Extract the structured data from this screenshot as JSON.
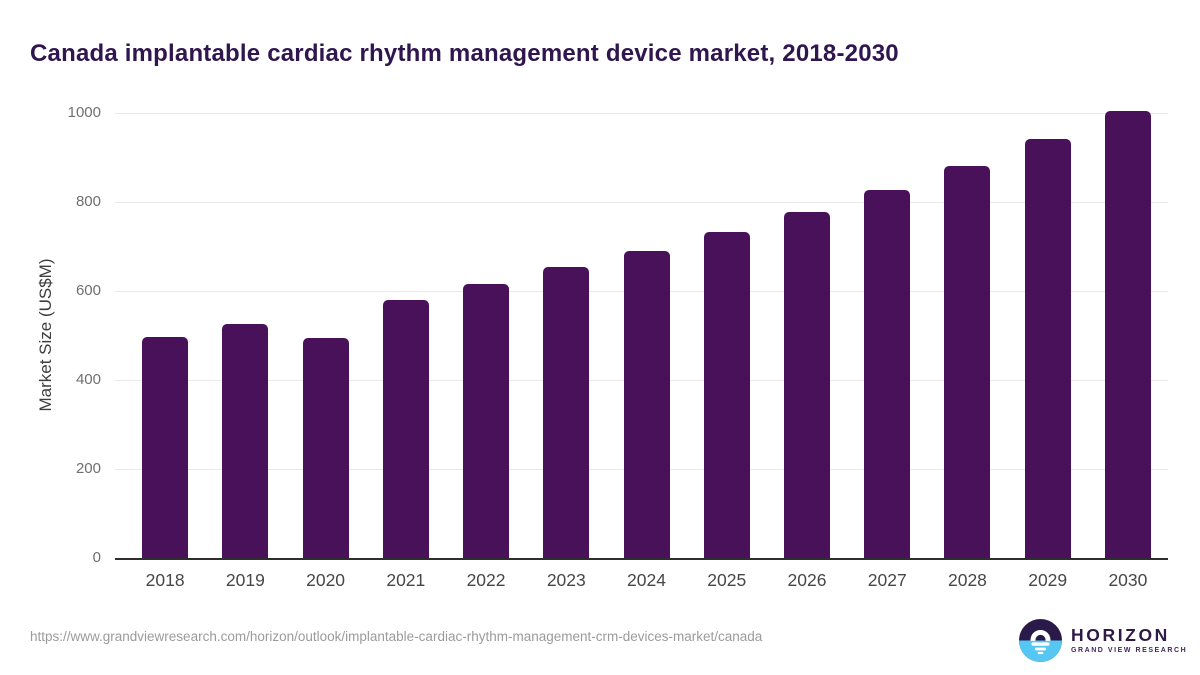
{
  "title": "Canada implantable cardiac rhythm management device market, 2018-2030",
  "chart_data": {
    "type": "bar",
    "title": "Canada implantable cardiac rhythm management device market, 2018-2030",
    "categories": [
      "2018",
      "2019",
      "2020",
      "2021",
      "2022",
      "2023",
      "2024",
      "2025",
      "2026",
      "2027",
      "2028",
      "2029",
      "2030"
    ],
    "values": [
      496,
      526,
      494,
      581,
      615,
      655,
      691,
      733,
      778,
      828,
      882,
      941,
      1004
    ],
    "xlabel": "",
    "ylabel": "Market Size (US$M)",
    "ylim": [
      0,
      1000
    ],
    "yticks": [
      0,
      200,
      400,
      600,
      800,
      1000
    ],
    "grid": "horizontal",
    "legend": "none",
    "bar_color": "#491159"
  },
  "footer": {
    "source_url": "https://www.grandviewresearch.com/horizon/outlook/implantable-cardiac-rhythm-management-crm-devices-market/canada",
    "logo": {
      "name": "HORIZON",
      "subtitle": "GRAND VIEW RESEARCH"
    }
  },
  "colors": {
    "title": "#30164e",
    "bar": "#491159",
    "gridline": "#e9e9e9",
    "axis_line": "#2e2e2e",
    "y_tick_label": "#6f6f6f",
    "x_tick_label": "#474747",
    "source_url": "#9b9b9b",
    "logo_dark": "#2a1a4a",
    "logo_blue": "#56c7f2"
  }
}
